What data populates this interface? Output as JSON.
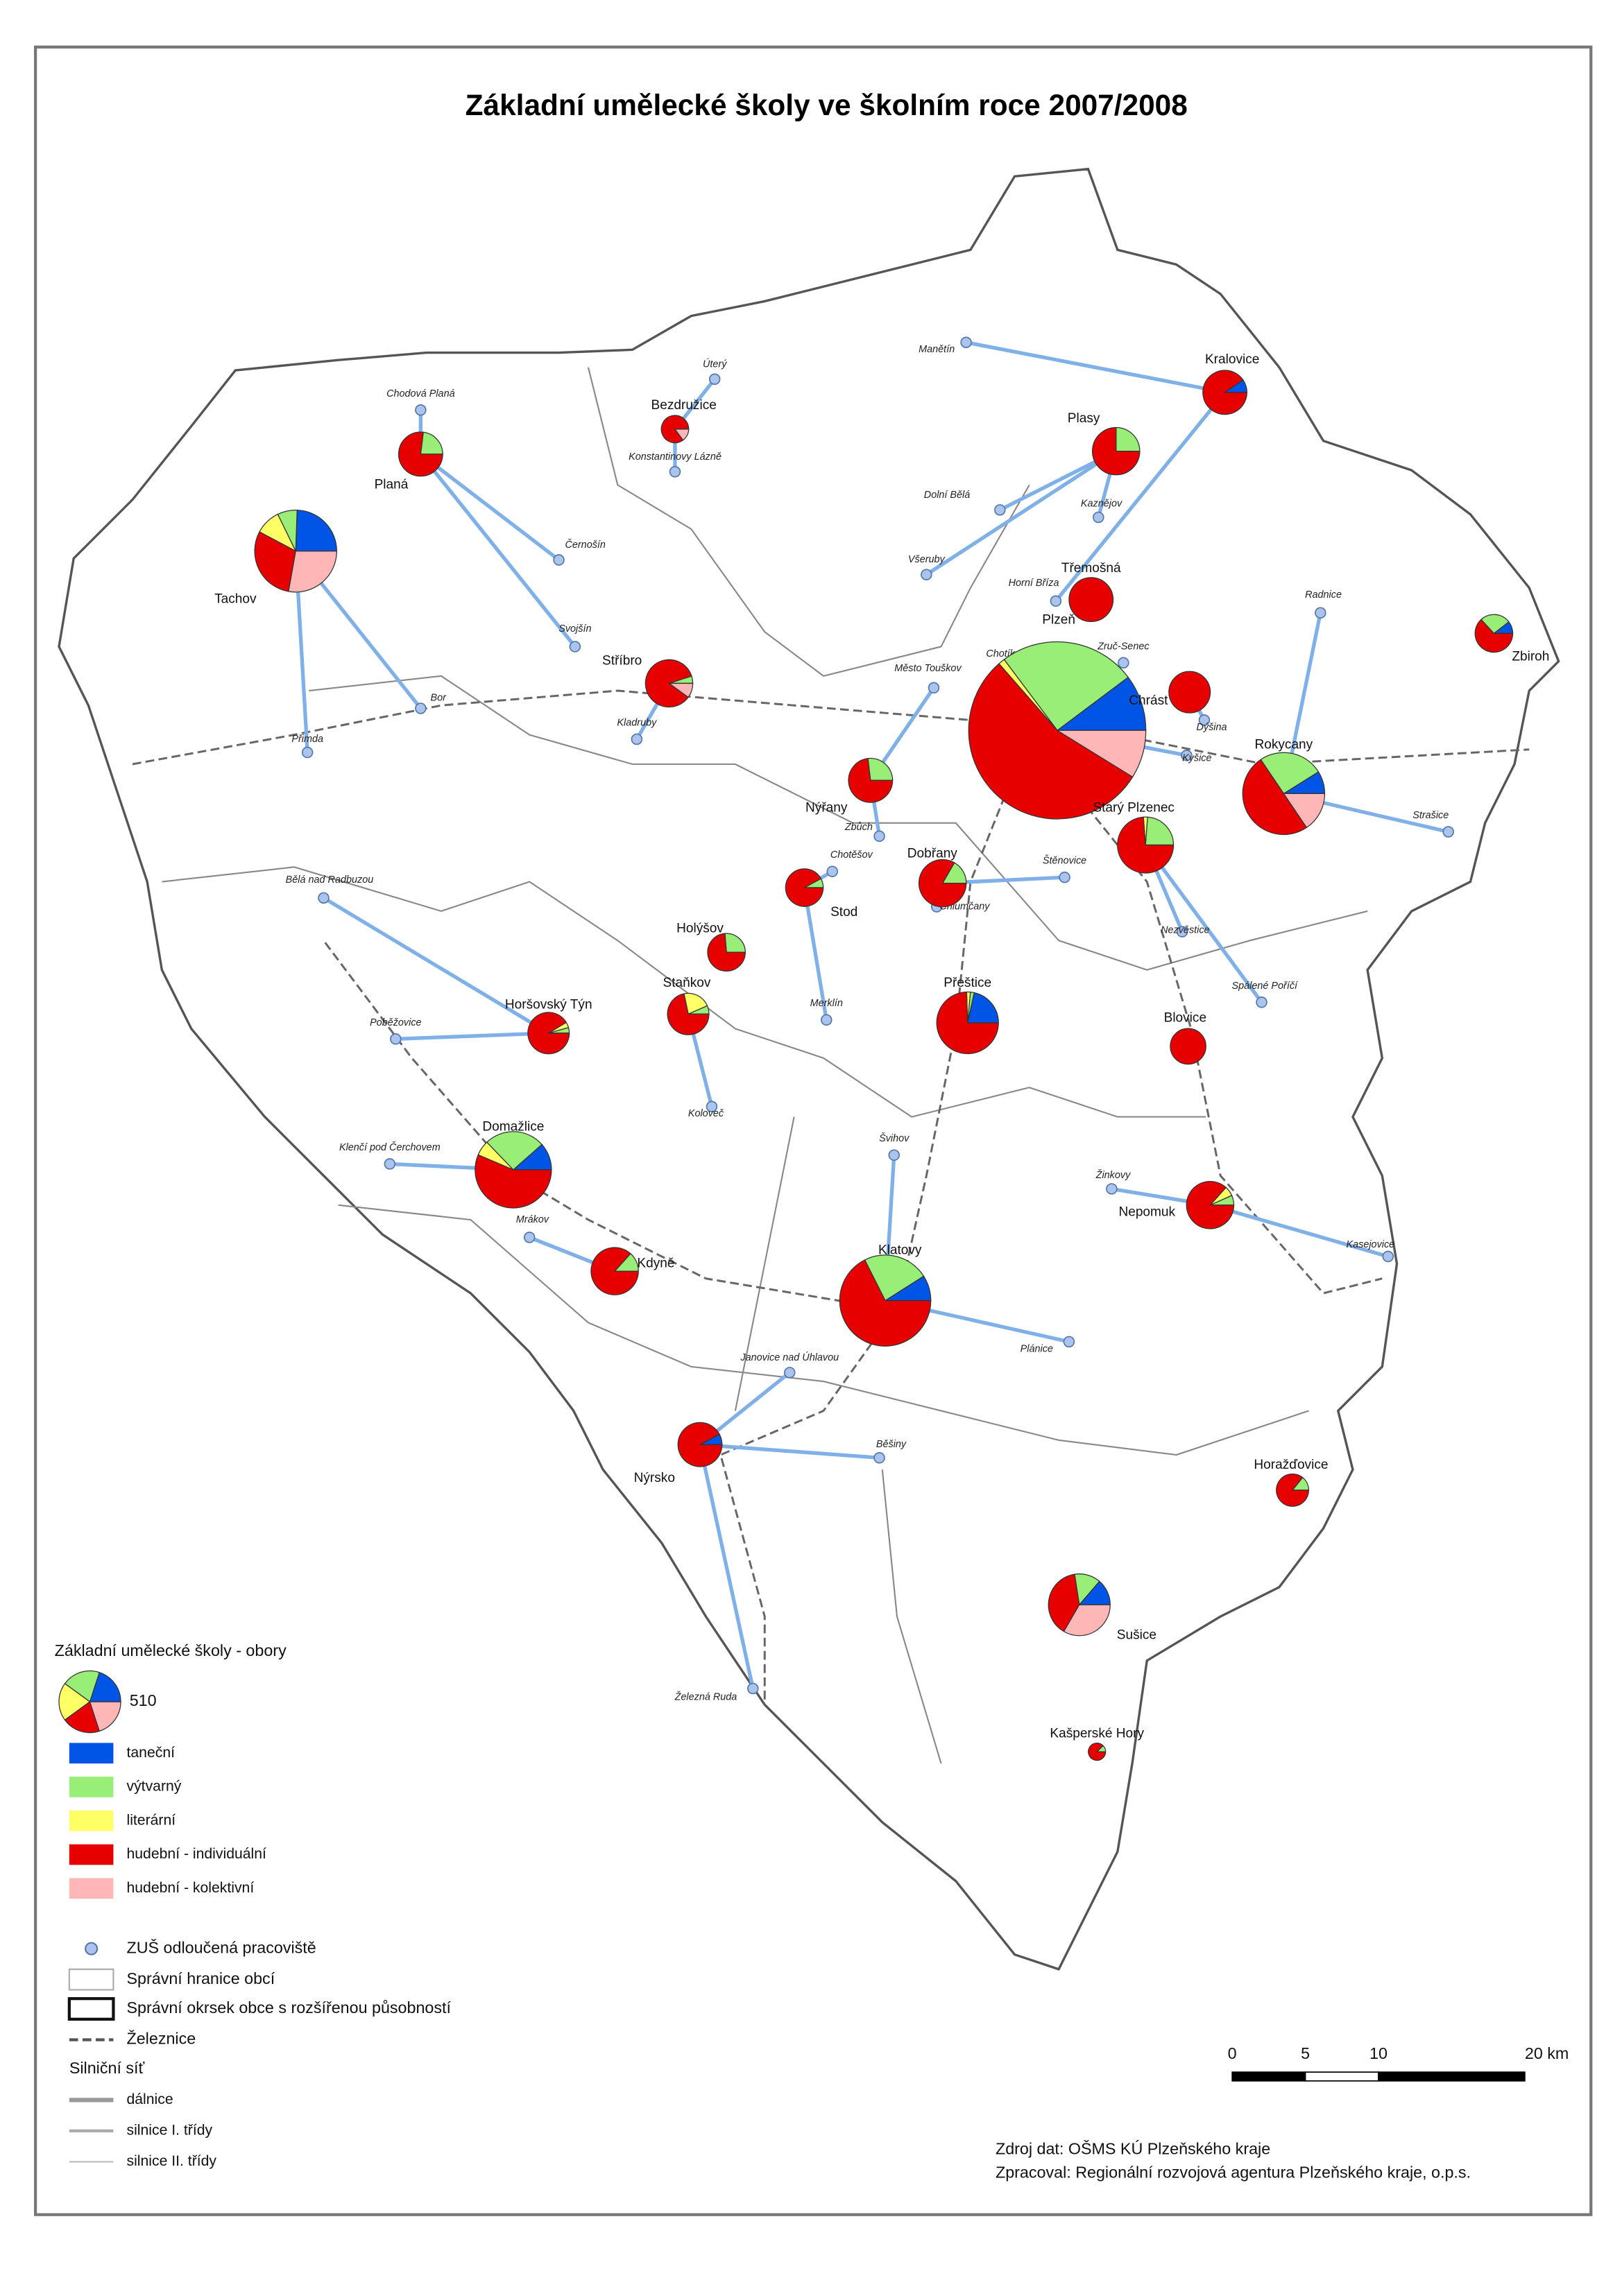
{
  "title": "Základní umělecké školy ve školním roce 2007/2008",
  "legend": {
    "title": "Základní umělecké školy - obory",
    "reference_total": 510,
    "categories": [
      {
        "label": "taneční",
        "color": "#0055e6"
      },
      {
        "label": "výtvarný",
        "color": "#99ee77"
      },
      {
        "label": "literární",
        "color": "#ffff66"
      },
      {
        "label": "hudební - individuální",
        "color": "#e60000"
      },
      {
        "label": "hudební - kolektivní",
        "color": "#ffb6b6"
      }
    ],
    "branch_label": "ZUŠ odloučená pracoviště",
    "municipal_border": "Správní hranice obcí",
    "district_border": "Správní okrsek obce s rozšířenou působností",
    "railway": "Železnice",
    "roads_title": "Silniční síť",
    "roads": [
      "dálnice",
      "silnice I. třídy",
      "silnice II. třídy"
    ]
  },
  "schools": [
    {
      "name": "Kralovice",
      "values": [
        25,
        0,
        0,
        235,
        0
      ]
    },
    {
      "name": "Bezdružice",
      "values": [
        0,
        0,
        0,
        85,
        15
      ]
    },
    {
      "name": "Planá",
      "values": [
        0,
        60,
        0,
        200,
        0
      ]
    },
    {
      "name": "Plasy",
      "values": [
        0,
        75,
        0,
        225,
        0
      ]
    },
    {
      "name": "Tachov",
      "values": [
        220,
        70,
        90,
        270,
        250
      ]
    },
    {
      "name": "Třemošná",
      "values": [
        0,
        0,
        0,
        260,
        0
      ]
    },
    {
      "name": "Zbiroh",
      "values": [
        20,
        50,
        0,
        120,
        0
      ]
    },
    {
      "name": "Stříbro",
      "values": [
        0,
        15,
        0,
        255,
        30
      ]
    },
    {
      "name": "Plzeň",
      "values": [
        430,
        1050,
        50,
        2300,
        370
      ]
    },
    {
      "name": "Chrást",
      "values": [
        0,
        0,
        0,
        230,
        0
      ]
    },
    {
      "name": "Rokycany",
      "values": [
        80,
        230,
        0,
        450,
        140
      ]
    },
    {
      "name": "Nýřany",
      "values": [
        0,
        70,
        0,
        190,
        0
      ]
    },
    {
      "name": "Starý Plzenec",
      "values": [
        0,
        100,
        10,
        310,
        0
      ]
    },
    {
      "name": "Dobřany",
      "values": [
        0,
        50,
        0,
        250,
        0
      ]
    },
    {
      "name": "Stod",
      "values": [
        0,
        15,
        0,
        175,
        0
      ]
    },
    {
      "name": "Holýšov",
      "values": [
        0,
        50,
        0,
        140,
        0
      ]
    },
    {
      "name": "Staňkov",
      "values": [
        0,
        15,
        50,
        165,
        0
      ]
    },
    {
      "name": "Horšovský Týn",
      "values": [
        0,
        10,
        10,
        210,
        0
      ]
    },
    {
      "name": "Přeštice",
      "values": [
        110,
        10,
        10,
        380,
        0
      ]
    },
    {
      "name": "Blovice",
      "values": [
        0,
        0,
        0,
        170,
        0
      ]
    },
    {
      "name": "Domažlice",
      "values": [
        90,
        200,
        50,
        440,
        0
      ]
    },
    {
      "name": "Nepomuk",
      "values": [
        0,
        20,
        20,
        260,
        0
      ]
    },
    {
      "name": "Kdyně",
      "values": [
        0,
        40,
        0,
        260,
        0
      ]
    },
    {
      "name": "Klatovy",
      "values": [
        100,
        260,
        0,
        750,
        0
      ]
    },
    {
      "name": "Nýrsko",
      "values": [
        20,
        0,
        0,
        240,
        0
      ]
    },
    {
      "name": "Horažďovice",
      "values": [
        0,
        20,
        0,
        120,
        0
      ]
    },
    {
      "name": "Sušice",
      "values": [
        70,
        70,
        0,
        200,
        170
      ]
    },
    {
      "name": "Kašperské Hory",
      "values": [
        0,
        5,
        0,
        35,
        0
      ]
    }
  ],
  "branches": [
    "Úterý",
    "Chodová Planá",
    "Konstantinovy Lázně",
    "Manětín",
    "Dolní Bělá",
    "Kaznějov",
    "Všeruby",
    "Černošín",
    "Horní Bříza",
    "Svojšín",
    "Bor",
    "Přimda",
    "Kladruby",
    "Město Touškov",
    "Chotíkov",
    "Zruč-Senec",
    "Radnice",
    "Dýšina",
    "Kyšice",
    "Zbůch",
    "Chotěšov",
    "Chlumčany",
    "Štěnovice",
    "Nezvěstice",
    "Spálené Poříčí",
    "Strašice",
    "Bělá nad Radbuzou",
    "Poběžovice",
    "Merklín",
    "Koloveč",
    "Klenčí pod Čerchovem",
    "Mrákov",
    "Švihov",
    "Žinkovy",
    "Kasejovice",
    "Plánice",
    "Janovice nad Úhlavou",
    "Běšiny",
    "Železná Ruda"
  ],
  "scale": {
    "ticks": [
      0,
      5,
      10,
      {
        "value": 20,
        "label": "20 km"
      }
    ]
  },
  "source": [
    "Zdroj dat: OŠMS KÚ Plzeňského kraje",
    "Zpracoval: Regionální rozvojová agentura Plzeňského kraje, o.p.s."
  ]
}
